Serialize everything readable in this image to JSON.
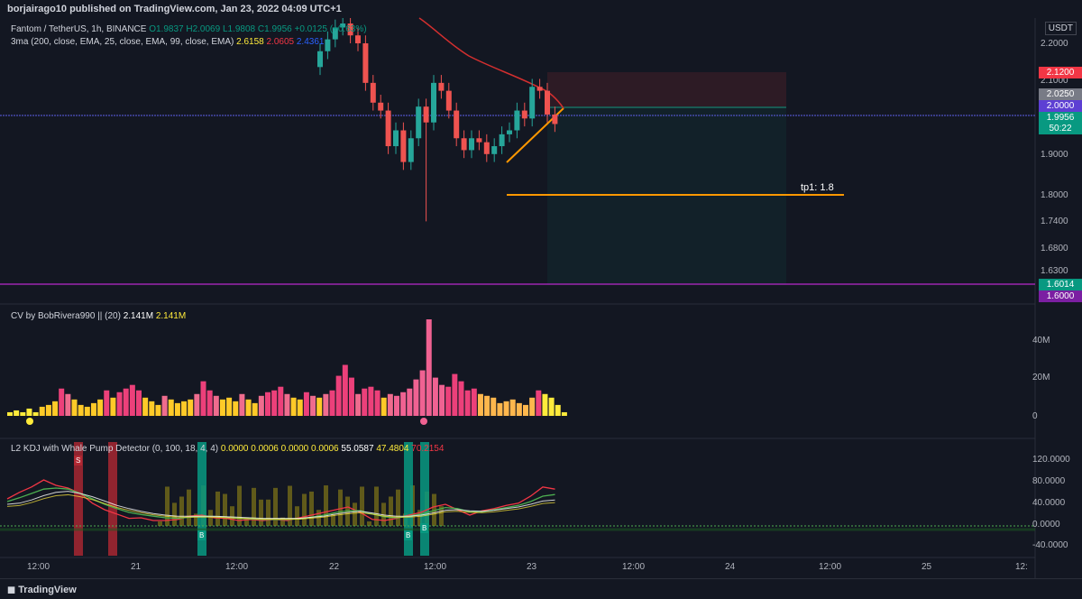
{
  "header": {
    "published": "borjairago10 published on TradingView.com, Jan 23, 2022 04:09 UTC+1"
  },
  "main": {
    "symbol": "Fantom / TetherUS, 1h, BINANCE",
    "ohlc": {
      "o": "O1.9837",
      "h": "H2.0069",
      "l": "L1.9808",
      "c": "C1.9956",
      "chg": "+0.0125 (+0.63%)"
    },
    "ma_label": "3ma (200, close, EMA, 25, close, EMA, 99, close, EMA)",
    "ma_values": [
      "2.6158",
      "2.0605",
      "2.4361"
    ],
    "currency": "USDT",
    "price_ticks": [
      "2.2000",
      "2.1000",
      "1.9000",
      "1.8000",
      "1.7400",
      "1.6800",
      "1.6300"
    ],
    "price_tags": [
      {
        "text": "2.1200",
        "color": "#f23645"
      },
      {
        "text": "2.0250",
        "color": "#787b86"
      },
      {
        "text": "2.0000",
        "color": "#5d3fd3"
      },
      {
        "text": "1.9956",
        "color": "#089981"
      },
      {
        "text": "50:22",
        "color": "#089981"
      },
      {
        "text": "1.6014",
        "color": "#089981"
      },
      {
        "text": "1.6000",
        "color": "#7b1fa2"
      }
    ],
    "tp_label": "tp1: 1.8"
  },
  "cv": {
    "label": "CV by BobRivera990 || (20)",
    "v1": "2.141M",
    "v2": "2.141M",
    "ticks": [
      "40M",
      "20M",
      "0"
    ]
  },
  "kdj": {
    "label": "L2 KDJ with Whale Pump Detector (0, 100, 18, 4, 4)",
    "values": [
      "0.0000",
      "0.0006",
      "0.0000",
      "0.0006",
      "55.0587",
      "47.4804",
      "70.2154"
    ],
    "ticks": [
      "120.0000",
      "80.0000",
      "40.0000",
      "0.0000",
      "-40.0000"
    ],
    "signals": [
      {
        "text": "S",
        "color": "#b22833"
      },
      {
        "text": "B",
        "color": "#089981"
      },
      {
        "text": "B",
        "color": "#089981"
      },
      {
        "text": "B",
        "color": "#089981"
      }
    ]
  },
  "time_axis": [
    "12:00",
    "21",
    "12:00",
    "22",
    "12:00",
    "23",
    "12:00",
    "24",
    "12:00",
    "25",
    "12:"
  ],
  "footer": {
    "brand": "TradingView"
  },
  "chart_data": {
    "type": "candlestick",
    "price_ylim": [
      1.6,
      2.2
    ],
    "candles_close": [
      2.18,
      2.21,
      2.24,
      2.25,
      2.22,
      2.2,
      2.1,
      2.05,
      2.03,
      1.94,
      1.98,
      1.9,
      1.96,
      2.04,
      2.0,
      2.1,
      2.08,
      2.03,
      1.96,
      1.93,
      1.96,
      1.95,
      1.92,
      1.94,
      1.97,
      1.98,
      2.03,
      2.01,
      2.09,
      2.08,
      2.02,
      1.996
    ],
    "volume": [
      2,
      3,
      2,
      4,
      2,
      5,
      6,
      8,
      15,
      12,
      9,
      6,
      5,
      7,
      9,
      14,
      10,
      13,
      15,
      17,
      14,
      10,
      8,
      6,
      11,
      9,
      7,
      8,
      9,
      12,
      19,
      14,
      11,
      9,
      10,
      8,
      12,
      9,
      7,
      11,
      13,
      14,
      16,
      12,
      10,
      9,
      13,
      11,
      10,
      12,
      14,
      22,
      28,
      21,
      12,
      15,
      16,
      14,
      10,
      12,
      11,
      13,
      15,
      20,
      25,
      53,
      21,
      17,
      16,
      23,
      19,
      14,
      15,
      12,
      11,
      10,
      7,
      8,
      9,
      7,
      6,
      10,
      14,
      12,
      10,
      6,
      2
    ],
    "kdj": {
      "k": [
        50,
        62,
        72,
        85,
        75,
        70,
        60,
        42,
        30,
        22,
        14,
        15,
        10,
        10,
        12,
        18,
        20,
        15,
        14,
        10,
        12,
        10,
        12,
        10,
        15,
        20,
        25,
        30,
        35,
        25,
        12,
        10,
        14,
        20,
        25,
        35,
        40,
        30,
        20,
        28,
        32,
        38,
        42,
        55,
        72,
        68
      ],
      "d": [
        45,
        52,
        60,
        68,
        70,
        68,
        60,
        50,
        40,
        32,
        25,
        21,
        18,
        15,
        14,
        16,
        18,
        17,
        16,
        14,
        13,
        12,
        12,
        12,
        13,
        16,
        20,
        25,
        28,
        28,
        22,
        17,
        15,
        18,
        22,
        28,
        34,
        32,
        26,
        26,
        30,
        34,
        38,
        45,
        55,
        58
      ],
      "j": [
        40,
        42,
        48,
        56,
        62,
        64,
        60,
        54,
        46,
        38,
        32,
        27,
        23,
        20,
        18,
        18,
        18,
        18,
        17,
        16,
        15,
        14,
        14,
        14,
        14,
        16,
        18,
        22,
        25,
        27,
        24,
        20,
        18,
        18,
        20,
        24,
        29,
        30,
        28,
        27,
        29,
        32,
        35,
        40,
        46,
        48
      ]
    }
  }
}
